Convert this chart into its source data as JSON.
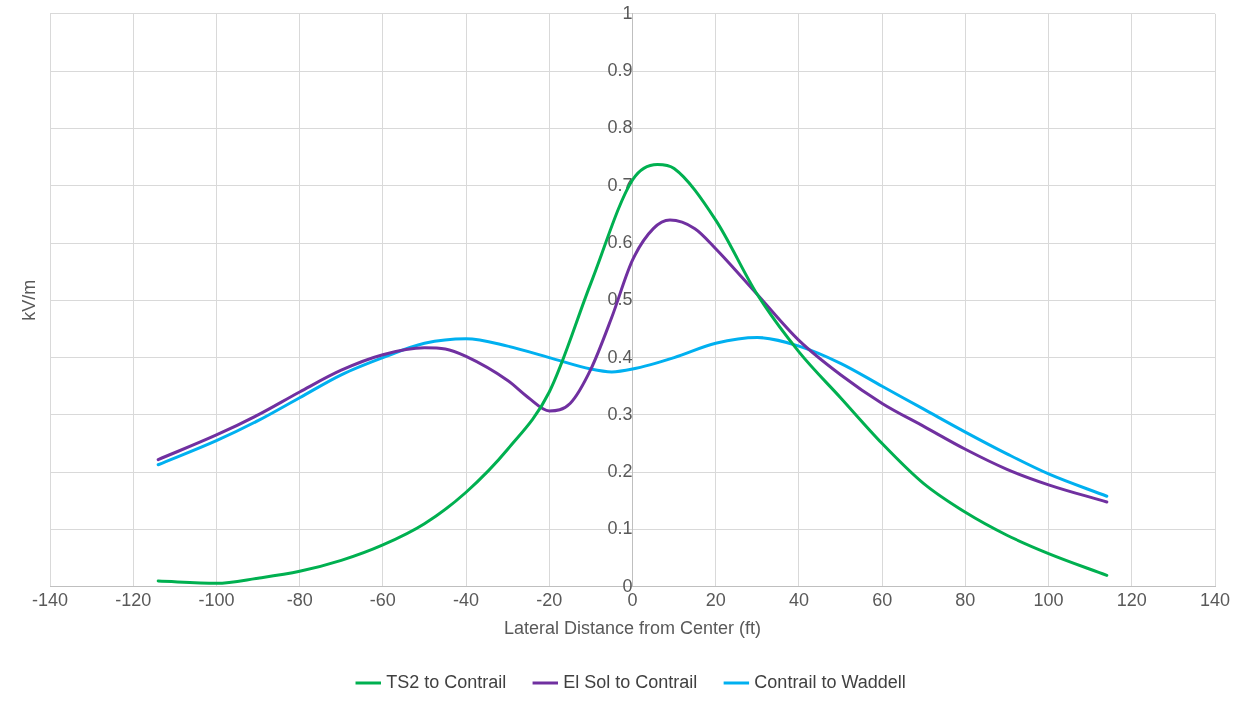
{
  "chart_data": {
    "type": "line",
    "xlabel": "Lateral Distance from Center (ft)",
    "ylabel": "kV/m",
    "xlim": [
      -140,
      140
    ],
    "xticks": [
      -140,
      -120,
      -100,
      -80,
      -60,
      -40,
      -20,
      0,
      20,
      40,
      60,
      80,
      100,
      120,
      140
    ],
    "ylim": [
      0,
      1
    ],
    "yticks": [
      0,
      0.1,
      0.2,
      0.3,
      0.4,
      0.5,
      0.6,
      0.7,
      0.8,
      0.9,
      1
    ],
    "grid": true,
    "legend": "bottom",
    "marker": "none",
    "line_style": "solid",
    "series": [
      {
        "name": "TS2 to Contrail",
        "color": "#00b050",
        "x": [
          -114,
          -100,
          -90,
          -80,
          -70,
          -60,
          -50,
          -40,
          -30,
          -20,
          -10,
          0,
          6,
          10,
          20,
          30,
          40,
          50,
          60,
          70,
          80,
          90,
          100,
          114
        ],
        "values": [
          0.01,
          0.006,
          0.015,
          0.027,
          0.046,
          0.073,
          0.11,
          0.165,
          0.24,
          0.34,
          0.53,
          0.71,
          0.737,
          0.73,
          0.64,
          0.51,
          0.41,
          0.33,
          0.25,
          0.18,
          0.13,
          0.09,
          0.058,
          0.02
        ]
      },
      {
        "name": "El Sol to Contrail",
        "color": "#7030a0",
        "x": [
          -114,
          -100,
          -90,
          -80,
          -70,
          -60,
          -50,
          -45,
          -40,
          -30,
          -25,
          -20,
          -15,
          -10,
          -5,
          0,
          5,
          9,
          15,
          20,
          30,
          40,
          50,
          60,
          70,
          80,
          90,
          100,
          114
        ],
        "values": [
          0.222,
          0.265,
          0.3,
          0.34,
          0.378,
          0.405,
          0.417,
          0.415,
          0.402,
          0.36,
          0.33,
          0.307,
          0.32,
          0.38,
          0.47,
          0.57,
          0.625,
          0.64,
          0.625,
          0.59,
          0.51,
          0.43,
          0.37,
          0.32,
          0.28,
          0.24,
          0.205,
          0.178,
          0.148
        ]
      },
      {
        "name": "Contrail to Waddell",
        "color": "#00b0f0",
        "x": [
          -114,
          -100,
          -90,
          -80,
          -70,
          -60,
          -50,
          -40,
          -30,
          -20,
          -10,
          -5,
          0,
          10,
          20,
          30,
          40,
          50,
          60,
          70,
          80,
          90,
          100,
          114
        ],
        "values": [
          0.213,
          0.255,
          0.29,
          0.33,
          0.37,
          0.4,
          0.425,
          0.433,
          0.42,
          0.4,
          0.38,
          0.375,
          0.38,
          0.4,
          0.425,
          0.435,
          0.42,
          0.39,
          0.35,
          0.31,
          0.27,
          0.232,
          0.197,
          0.158
        ]
      }
    ]
  }
}
